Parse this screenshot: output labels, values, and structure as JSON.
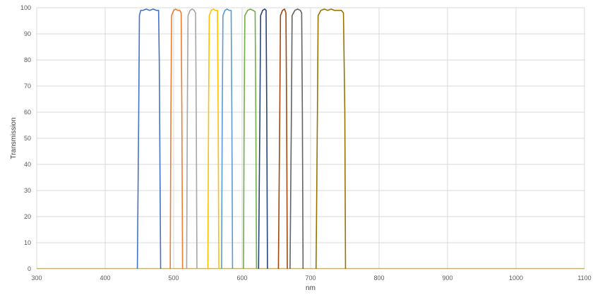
{
  "chart_data": {
    "type": "line",
    "title": "",
    "xlabel": "nm",
    "ylabel": "Transmission",
    "xlim": [
      300,
      1100
    ],
    "ylim": [
      0,
      100
    ],
    "x_ticks": [
      300,
      400,
      500,
      600,
      700,
      800,
      900,
      1000,
      1100
    ],
    "y_ticks": [
      0,
      10,
      20,
      30,
      40,
      50,
      60,
      70,
      80,
      90,
      100
    ],
    "grid": true,
    "legend": "none",
    "baseline": {
      "color": "#C8B070",
      "from": 300,
      "to": 1100,
      "value": 0
    },
    "series": [
      {
        "color": "#4472C4",
        "points": [
          [
            447,
            0
          ],
          [
            449,
            60
          ],
          [
            450,
            97
          ],
          [
            452,
            99
          ],
          [
            455,
            99
          ],
          [
            460,
            99.5
          ],
          [
            465,
            99
          ],
          [
            470,
            99.5
          ],
          [
            475,
            99
          ],
          [
            478,
            99
          ],
          [
            479,
            80
          ],
          [
            481,
            0
          ]
        ]
      },
      {
        "color": "#ED7D31",
        "points": [
          [
            495,
            0
          ],
          [
            496,
            60
          ],
          [
            497,
            97
          ],
          [
            500,
            99
          ],
          [
            503,
            99.5
          ],
          [
            506,
            99
          ],
          [
            509,
            99
          ],
          [
            511,
            98
          ],
          [
            512,
            60
          ],
          [
            513,
            0
          ]
        ]
      },
      {
        "color": "#A5A5A5",
        "points": [
          [
            519,
            0
          ],
          [
            520,
            60
          ],
          [
            521,
            97
          ],
          [
            524,
            99
          ],
          [
            527,
            99.5
          ],
          [
            530,
            99
          ],
          [
            532,
            98
          ],
          [
            533,
            60
          ],
          [
            534,
            0
          ]
        ]
      },
      {
        "color": "#FFC000",
        "points": [
          [
            550,
            0
          ],
          [
            551,
            60
          ],
          [
            552,
            97
          ],
          [
            555,
            99
          ],
          [
            558,
            99.5
          ],
          [
            561,
            99
          ],
          [
            564,
            99
          ],
          [
            565,
            60
          ],
          [
            566,
            0
          ]
        ]
      },
      {
        "color": "#5B9BD5",
        "points": [
          [
            570,
            0
          ],
          [
            571,
            60
          ],
          [
            572,
            97
          ],
          [
            575,
            99
          ],
          [
            578,
            99.5
          ],
          [
            581,
            99
          ],
          [
            584,
            99
          ],
          [
            585,
            60
          ],
          [
            586,
            0
          ]
        ]
      },
      {
        "color": "#70AD47",
        "points": [
          [
            602,
            0
          ],
          [
            603,
            60
          ],
          [
            604,
            97
          ],
          [
            608,
            99
          ],
          [
            612,
            99.5
          ],
          [
            616,
            99
          ],
          [
            619,
            98.5
          ],
          [
            620,
            60
          ],
          [
            621,
            0
          ]
        ]
      },
      {
        "color": "#264478",
        "points": [
          [
            624,
            0
          ],
          [
            626,
            60
          ],
          [
            627,
            97
          ],
          [
            630,
            99
          ],
          [
            633,
            99.5
          ],
          [
            635,
            99
          ],
          [
            636,
            60
          ],
          [
            637,
            0
          ]
        ]
      },
      {
        "color": "#9E480E",
        "points": [
          [
            653,
            0
          ],
          [
            655,
            60
          ],
          [
            656,
            97
          ],
          [
            659,
            99
          ],
          [
            662,
            99.5
          ],
          [
            664,
            98
          ],
          [
            665,
            60
          ],
          [
            666,
            0
          ]
        ]
      },
      {
        "color": "#636363",
        "points": [
          [
            670,
            0
          ],
          [
            672,
            60
          ],
          [
            673,
            97
          ],
          [
            677,
            99
          ],
          [
            681,
            99.5
          ],
          [
            685,
            99
          ],
          [
            687,
            98
          ],
          [
            688,
            60
          ],
          [
            689,
            0
          ]
        ]
      },
      {
        "color": "#997300",
        "points": [
          [
            708,
            0
          ],
          [
            710,
            60
          ],
          [
            711,
            97
          ],
          [
            715,
            99
          ],
          [
            720,
            99.5
          ],
          [
            725,
            99
          ],
          [
            730,
            99.5
          ],
          [
            735,
            99
          ],
          [
            740,
            99
          ],
          [
            745,
            99
          ],
          [
            748,
            98
          ],
          [
            750,
            60
          ],
          [
            751,
            0
          ]
        ]
      }
    ]
  }
}
